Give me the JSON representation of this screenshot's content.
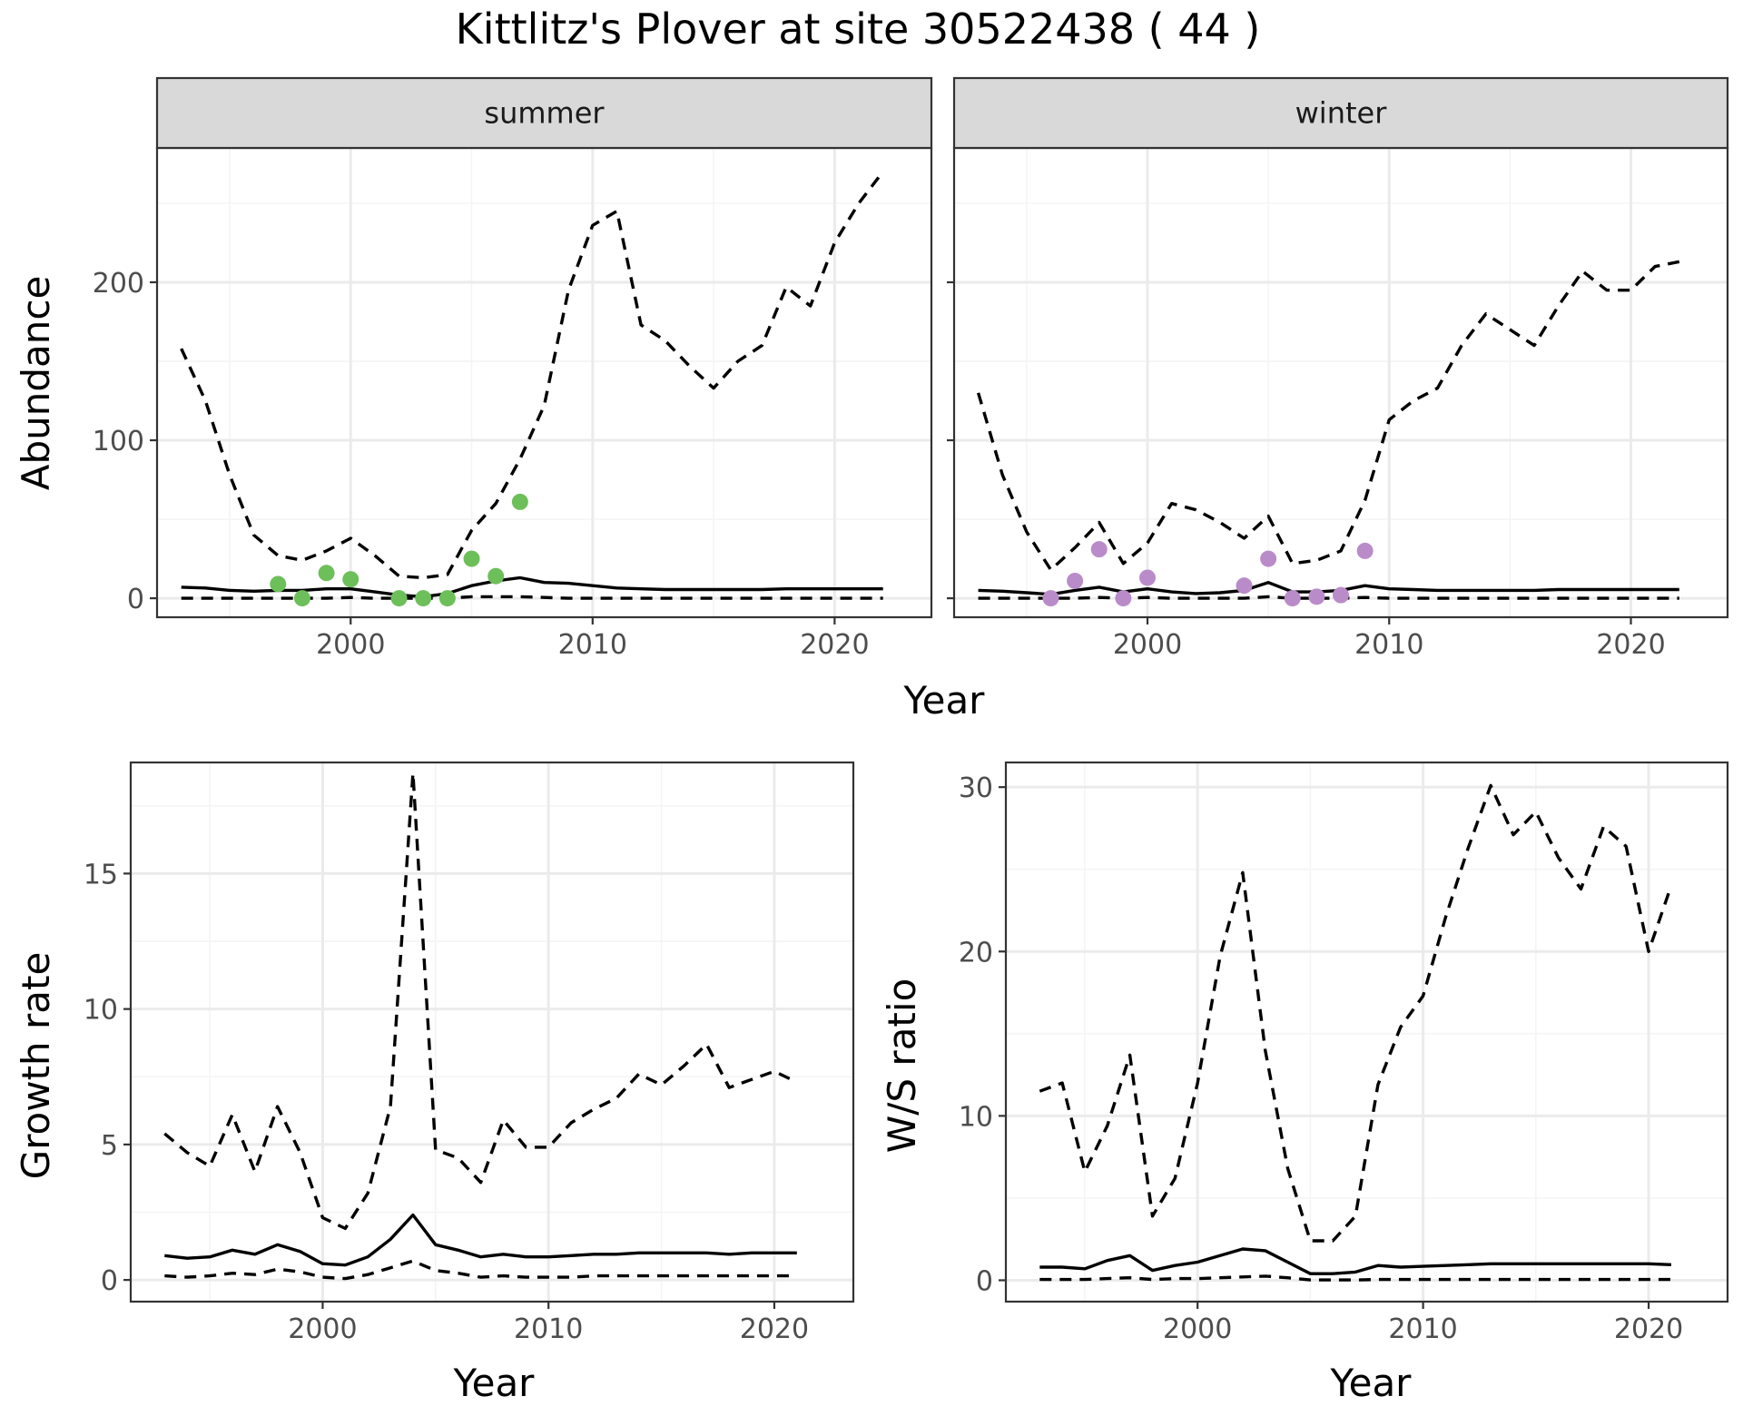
{
  "title": "Kittlitz's Plover at site 30522438 ( 44 )",
  "colors": {
    "summer_points": "#6dbf5a",
    "winter_points": "#b98cc9",
    "line": "#000000",
    "grid_major": "#ebebeb",
    "grid_minor": "#f4f4f4",
    "strip_fill": "#d9d9d9"
  },
  "chart_data": [
    {
      "type": "line",
      "panel": "summer",
      "strip_label": "summer",
      "xlabel": "Year",
      "ylabel": "Abundance",
      "xlim": [
        1992,
        2024
      ],
      "ylim": [
        -12,
        285
      ],
      "x_ticks": [
        2000,
        2010,
        2020
      ],
      "y_ticks": [
        0,
        100,
        200
      ],
      "series": [
        {
          "role": "mean",
          "style": "solid",
          "x": [
            1993,
            1994,
            1995,
            1996,
            1997,
            1998,
            1999,
            2000,
            2001,
            2002,
            2003,
            2004,
            2005,
            2006,
            2007,
            2008,
            2009,
            2010,
            2011,
            2012,
            2013,
            2014,
            2015,
            2016,
            2017,
            2018,
            2019,
            2020,
            2021,
            2022
          ],
          "values": [
            7,
            6.5,
            5,
            4.5,
            5,
            5,
            6,
            6,
            4,
            2,
            1,
            3,
            8,
            11,
            13,
            10,
            9.5,
            8,
            6.5,
            6,
            5.5,
            5.5,
            5.5,
            5.5,
            5.5,
            6,
            6,
            6,
            6,
            6
          ]
        },
        {
          "role": "upper",
          "style": "dashed",
          "x": [
            1993,
            1994,
            1995,
            1996,
            1997,
            1998,
            1999,
            2000,
            2001,
            2002,
            2003,
            2004,
            2005,
            2006,
            2007,
            2008,
            2009,
            2010,
            2011,
            2012,
            2013,
            2014,
            2015,
            2016,
            2017,
            2018,
            2019,
            2020,
            2021,
            2022
          ],
          "values": [
            158,
            125,
            78,
            40,
            27,
            24,
            30,
            38,
            27,
            14,
            13,
            15,
            43,
            60,
            88,
            122,
            195,
            236,
            245,
            173,
            163,
            147,
            133,
            150,
            160,
            197,
            185,
            225,
            250,
            270
          ]
        },
        {
          "role": "lower",
          "style": "dashed",
          "x": [
            1993,
            1994,
            1995,
            1996,
            1997,
            1998,
            1999,
            2000,
            2001,
            2002,
            2003,
            2004,
            2005,
            2006,
            2007,
            2008,
            2009,
            2010,
            2011,
            2012,
            2013,
            2014,
            2015,
            2016,
            2017,
            2018,
            2019,
            2020,
            2021,
            2022
          ],
          "values": [
            0,
            0,
            0,
            0,
            0,
            0,
            0,
            0.5,
            0,
            0,
            0,
            0,
            1,
            1,
            1,
            0.5,
            0,
            0,
            0,
            0,
            0,
            0,
            0,
            0,
            0,
            0,
            0,
            0,
            0,
            0
          ]
        }
      ],
      "points": {
        "x": [
          1997,
          1998,
          1999,
          2000,
          2002,
          2003,
          2004,
          2005,
          2006,
          2007
        ],
        "values": [
          9,
          0,
          16,
          12,
          0,
          0,
          0,
          25,
          14,
          61
        ]
      }
    },
    {
      "type": "line",
      "panel": "winter",
      "strip_label": "winter",
      "xlabel": "Year",
      "ylabel": "Abundance",
      "xlim": [
        1992,
        2024
      ],
      "ylim": [
        -12,
        285
      ],
      "x_ticks": [
        2000,
        2010,
        2020
      ],
      "y_ticks": [
        0,
        100,
        200
      ],
      "series": [
        {
          "role": "mean",
          "style": "solid",
          "x": [
            1993,
            1994,
            1995,
            1996,
            1997,
            1998,
            1999,
            2000,
            2001,
            2002,
            2003,
            2004,
            2005,
            2006,
            2007,
            2008,
            2009,
            2010,
            2011,
            2012,
            2013,
            2014,
            2015,
            2016,
            2017,
            2018,
            2019,
            2020,
            2021,
            2022
          ],
          "values": [
            5,
            4.5,
            3.5,
            2.5,
            5,
            7,
            4,
            6,
            4,
            3,
            3.5,
            5,
            10,
            4,
            4,
            5,
            8,
            6,
            5.5,
            5,
            5,
            5,
            5,
            5,
            5.5,
            5.5,
            5.5,
            5.5,
            5.5,
            5.5
          ]
        },
        {
          "role": "upper",
          "style": "dashed",
          "x": [
            1993,
            1994,
            1995,
            1996,
            1997,
            1998,
            1999,
            2000,
            2001,
            2002,
            2003,
            2004,
            2005,
            2006,
            2007,
            2008,
            2009,
            2010,
            2011,
            2012,
            2013,
            2014,
            2015,
            2016,
            2017,
            2018,
            2019,
            2020,
            2021,
            2022
          ],
          "values": [
            130,
            78,
            42,
            18,
            32,
            48,
            22,
            35,
            60,
            56,
            48,
            38,
            52,
            22,
            24,
            30,
            62,
            113,
            125,
            133,
            160,
            180,
            170,
            160,
            185,
            207,
            195,
            195,
            210,
            213
          ]
        },
        {
          "role": "lower",
          "style": "dashed",
          "x": [
            1993,
            1994,
            1995,
            1996,
            1997,
            1998,
            1999,
            2000,
            2001,
            2002,
            2003,
            2004,
            2005,
            2006,
            2007,
            2008,
            2009,
            2010,
            2011,
            2012,
            2013,
            2014,
            2015,
            2016,
            2017,
            2018,
            2019,
            2020,
            2021,
            2022
          ],
          "values": [
            0,
            0,
            0,
            0,
            0,
            0.5,
            0,
            0.5,
            0,
            0,
            0,
            0,
            1,
            0,
            0,
            0,
            0.5,
            0,
            0,
            0,
            0,
            0,
            0,
            0,
            0,
            0,
            0,
            0,
            0,
            0
          ]
        }
      ],
      "points": {
        "x": [
          1996,
          1997,
          1998,
          1999,
          2000,
          2004,
          2005,
          2006,
          2007,
          2008,
          2009
        ],
        "values": [
          0,
          11,
          31,
          0,
          13,
          8,
          25,
          0,
          1,
          2,
          30
        ]
      }
    },
    {
      "type": "line",
      "panel": "growth",
      "xlabel": "Year",
      "ylabel": "Growth rate",
      "xlim": [
        1991.5,
        2023.5
      ],
      "ylim": [
        -0.8,
        19.1
      ],
      "x_ticks": [
        2000,
        2010,
        2020
      ],
      "y_ticks": [
        0,
        5,
        10,
        15
      ],
      "series": [
        {
          "role": "mean",
          "style": "solid",
          "x": [
            1993,
            1994,
            1995,
            1996,
            1997,
            1998,
            1999,
            2000,
            2001,
            2002,
            2003,
            2004,
            2005,
            2006,
            2007,
            2008,
            2009,
            2010,
            2011,
            2012,
            2013,
            2014,
            2015,
            2016,
            2017,
            2018,
            2019,
            2020,
            2021
          ],
          "values": [
            0.9,
            0.8,
            0.85,
            1.1,
            0.95,
            1.3,
            1.05,
            0.6,
            0.55,
            0.85,
            1.5,
            2.4,
            1.3,
            1.1,
            0.85,
            0.95,
            0.85,
            0.85,
            0.9,
            0.95,
            0.95,
            1,
            1,
            1,
            1,
            0.95,
            1,
            1,
            1
          ]
        },
        {
          "role": "upper",
          "style": "dashed",
          "x": [
            1993,
            1994,
            1995,
            1996,
            1997,
            1998,
            1999,
            2000,
            2001,
            2002,
            2003,
            2004,
            2005,
            2006,
            2007,
            2008,
            2009,
            2010,
            2011,
            2012,
            2013,
            2014,
            2015,
            2016,
            2017,
            2018,
            2019,
            2020,
            2021
          ],
          "values": [
            5.4,
            4.7,
            4.2,
            6.1,
            4,
            6.4,
            4.7,
            2.3,
            1.9,
            3.2,
            6.4,
            18.7,
            4.8,
            4.5,
            3.6,
            5.9,
            4.9,
            4.9,
            5.8,
            6.3,
            6.7,
            7.6,
            7.2,
            7.9,
            8.7,
            7.1,
            7.4,
            7.7,
            7.3
          ]
        },
        {
          "role": "lower",
          "style": "dashed",
          "x": [
            1993,
            1994,
            1995,
            1996,
            1997,
            1998,
            1999,
            2000,
            2001,
            2002,
            2003,
            2004,
            2005,
            2006,
            2007,
            2008,
            2009,
            2010,
            2011,
            2012,
            2013,
            2014,
            2015,
            2016,
            2017,
            2018,
            2019,
            2020,
            2021
          ],
          "values": [
            0.15,
            0.1,
            0.15,
            0.25,
            0.2,
            0.4,
            0.3,
            0.1,
            0.05,
            0.2,
            0.45,
            0.7,
            0.35,
            0.25,
            0.1,
            0.15,
            0.1,
            0.1,
            0.1,
            0.15,
            0.15,
            0.15,
            0.15,
            0.15,
            0.15,
            0.15,
            0.15,
            0.15,
            0.15
          ]
        }
      ]
    },
    {
      "type": "line",
      "panel": "ratio",
      "xlabel": "Year",
      "ylabel": "W/S ratio",
      "xlim": [
        1991.5,
        2023.5
      ],
      "ylim": [
        -1.3,
        31.5
      ],
      "x_ticks": [
        2000,
        2010,
        2020
      ],
      "y_ticks": [
        0,
        10,
        20,
        30
      ],
      "series": [
        {
          "role": "mean",
          "style": "solid",
          "x": [
            1993,
            1994,
            1995,
            1996,
            1997,
            1998,
            1999,
            2000,
            2001,
            2002,
            2003,
            2004,
            2005,
            2006,
            2007,
            2008,
            2009,
            2010,
            2011,
            2012,
            2013,
            2014,
            2015,
            2016,
            2017,
            2018,
            2019,
            2020,
            2021
          ],
          "values": [
            0.8,
            0.8,
            0.7,
            1.2,
            1.5,
            0.6,
            0.9,
            1.1,
            1.5,
            1.9,
            1.8,
            1.1,
            0.4,
            0.4,
            0.5,
            0.9,
            0.8,
            0.85,
            0.9,
            0.95,
            1,
            1,
            1,
            1,
            1,
            1,
            1,
            1,
            0.95
          ]
        },
        {
          "role": "upper",
          "style": "dashed",
          "x": [
            1993,
            1994,
            1995,
            1996,
            1997,
            1998,
            1999,
            2000,
            2001,
            2002,
            2003,
            2004,
            2005,
            2006,
            2007,
            2008,
            2009,
            2010,
            2011,
            2012,
            2013,
            2014,
            2015,
            2016,
            2017,
            2018,
            2019,
            2020,
            2021
          ],
          "values": [
            11.5,
            12,
            6.6,
            9.4,
            13.7,
            3.9,
            6.2,
            12,
            19.7,
            24.8,
            14,
            6.8,
            2.4,
            2.4,
            3.9,
            11.9,
            15.4,
            17.3,
            22.1,
            26.3,
            30.1,
            27.1,
            28.5,
            25.7,
            23.8,
            27.6,
            26.4,
            20,
            24
          ]
        },
        {
          "role": "lower",
          "style": "dashed",
          "x": [
            1993,
            1994,
            1995,
            1996,
            1997,
            1998,
            1999,
            2000,
            2001,
            2002,
            2003,
            2004,
            2005,
            2006,
            2007,
            2008,
            2009,
            2010,
            2011,
            2012,
            2013,
            2014,
            2015,
            2016,
            2017,
            2018,
            2019,
            2020,
            2021
          ],
          "values": [
            0.05,
            0.05,
            0.05,
            0.1,
            0.15,
            0.05,
            0.1,
            0.1,
            0.15,
            0.2,
            0.25,
            0.15,
            0.02,
            0.02,
            0.02,
            0.05,
            0.05,
            0.05,
            0.05,
            0.05,
            0.05,
            0.05,
            0.05,
            0.05,
            0.05,
            0.05,
            0.05,
            0.05,
            0.05
          ]
        }
      ]
    }
  ]
}
